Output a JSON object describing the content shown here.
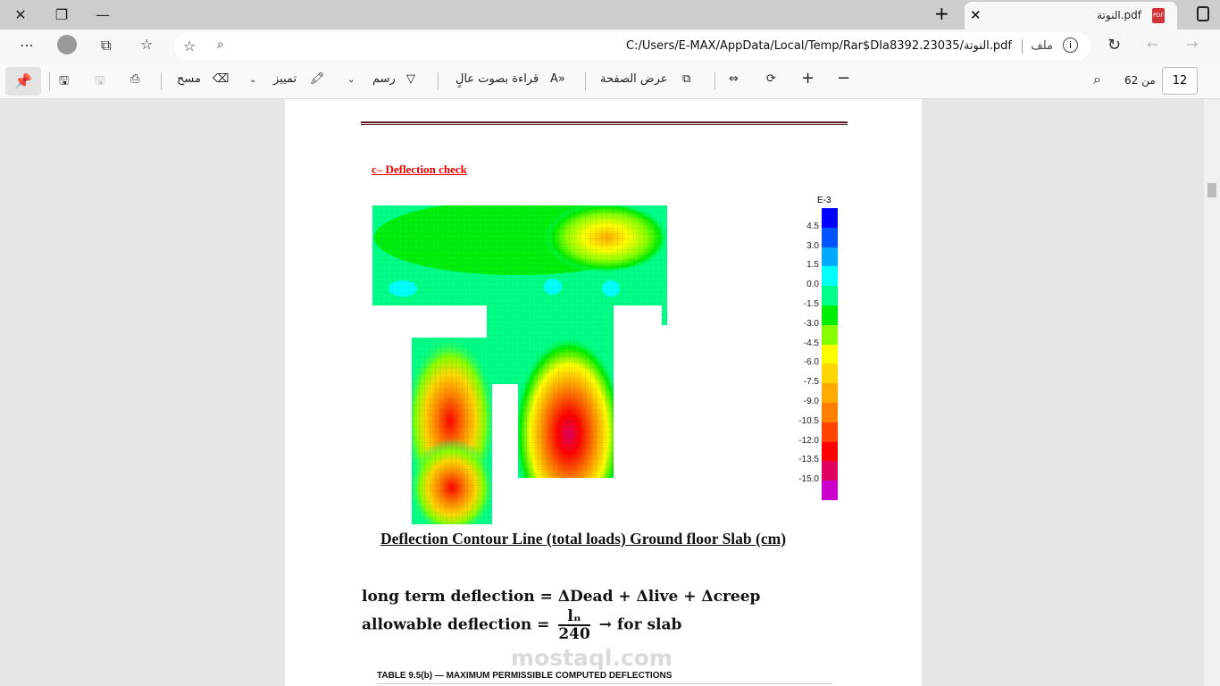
{
  "window": {
    "minimize": "—",
    "restore": "❐",
    "close": "✕"
  },
  "tab": {
    "title": "النوتة.pdf",
    "icon": "pdf-icon",
    "close": "✕",
    "new_tab": "+"
  },
  "address": {
    "url": "C:/Users/E-MAX/AppData/Local/Temp/Rar$DIa8392.23035/النوتة.pdf",
    "label": "ملف",
    "info": "i"
  },
  "toolbar": {
    "erase": "مسح",
    "highlight": "تمييز",
    "draw": "رسم",
    "read_aloud": "قراءة بصوت عالٍ",
    "page_view": "عرض الصفحة",
    "page_of": "من 62",
    "page_number": "12"
  },
  "document": {
    "heading": "c– Deflection check",
    "caption": "Deflection Contour Line (total loads) Ground floor Slab (cm)",
    "eq1": "long term deflection = ΔDead + Δlive + Δcreep",
    "eq2_left": "allowable deflection =",
    "eq2_num": "lₙ",
    "eq2_den": "240",
    "eq2_right": "→ for slab",
    "table_title": "TABLE 9.5(b) — MAXIMUM PERMISSIBLE COMPUTED DEFLECTIONS",
    "watermark": "mostaql.com"
  },
  "legend": {
    "title": "E-3",
    "labels": [
      "4.5",
      "3.0",
      "1.5",
      "0.0",
      "-1.5",
      "-3.0",
      "-4.5",
      "-6.0",
      "-7.5",
      "-9.0",
      "-10.5",
      "-12.0",
      "-13.5",
      "-15.0"
    ],
    "colors": [
      "#0000ff",
      "#0055ff",
      "#00aaff",
      "#00ffff",
      "#00ff88",
      "#00ee00",
      "#88ff00",
      "#ffff00",
      "#ffd700",
      "#ffaa00",
      "#ff7f00",
      "#ff4400",
      "#ff0000",
      "#e00060",
      "#cc00cc"
    ]
  }
}
